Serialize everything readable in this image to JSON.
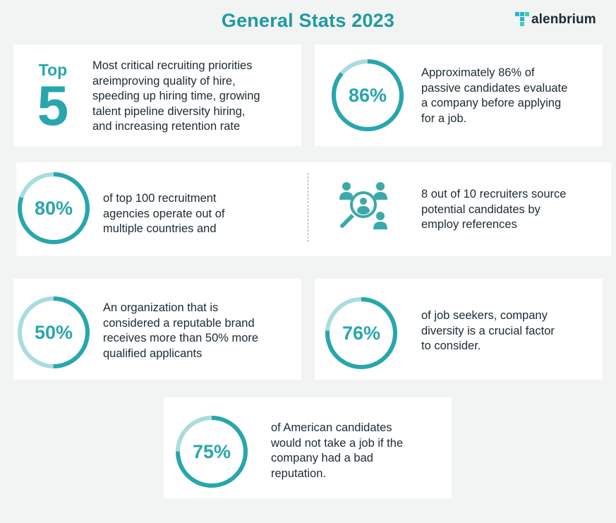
{
  "header": {
    "title": "General Stats 2023",
    "logo_text": "alenbrium",
    "logo_icon": "T"
  },
  "cards": {
    "top5": {
      "word": "Top",
      "number": "5",
      "text_lines": [
        "Most critical recruiting priorities",
        "areimproving quality of hire,",
        "speeding up hiring time, growing",
        "talent pipeline diversity hiring,",
        "and increasing retention rate"
      ]
    },
    "stat86": {
      "percent_label": "86%",
      "percent": 86,
      "text_lines": [
        "Approximately 86% of",
        "passive candidates evaluate",
        "a company before applying",
        "for a job."
      ]
    },
    "stat80": {
      "percent_label": "80%",
      "percent": 80,
      "text_lines": [
        "of top 100 recruitment",
        "agencies operate out of",
        "multiple countries and"
      ]
    },
    "recruiters": {
      "icon": "candidate-search-icon",
      "text_lines": [
        "8 out of 10 recruiters source",
        "potential candidates by",
        "employ references"
      ]
    },
    "stat50": {
      "percent_label": "50%",
      "percent": 50,
      "text_lines": [
        "An organization that is",
        "considered a reputable brand",
        "receives more than 50% more",
        "qualified applicants"
      ]
    },
    "stat76": {
      "percent_label": "76%",
      "percent": 76,
      "text_lines": [
        "of job seekers, company",
        "diversity is a crucial factor",
        "to consider."
      ]
    },
    "stat75": {
      "percent_label": "75%",
      "percent": 75,
      "text_lines": [
        "of American candidates",
        "would not  take a job if the",
        "company had a bad",
        "reputation."
      ]
    }
  },
  "colors": {
    "accent": "#28a6ad",
    "accent_light": "#a9dcdf",
    "title": "#1f9aa2",
    "text": "#1d2b33",
    "icon_teal": "#3aa9a8",
    "background": "#f2f3f3",
    "card": "#ffffff"
  }
}
